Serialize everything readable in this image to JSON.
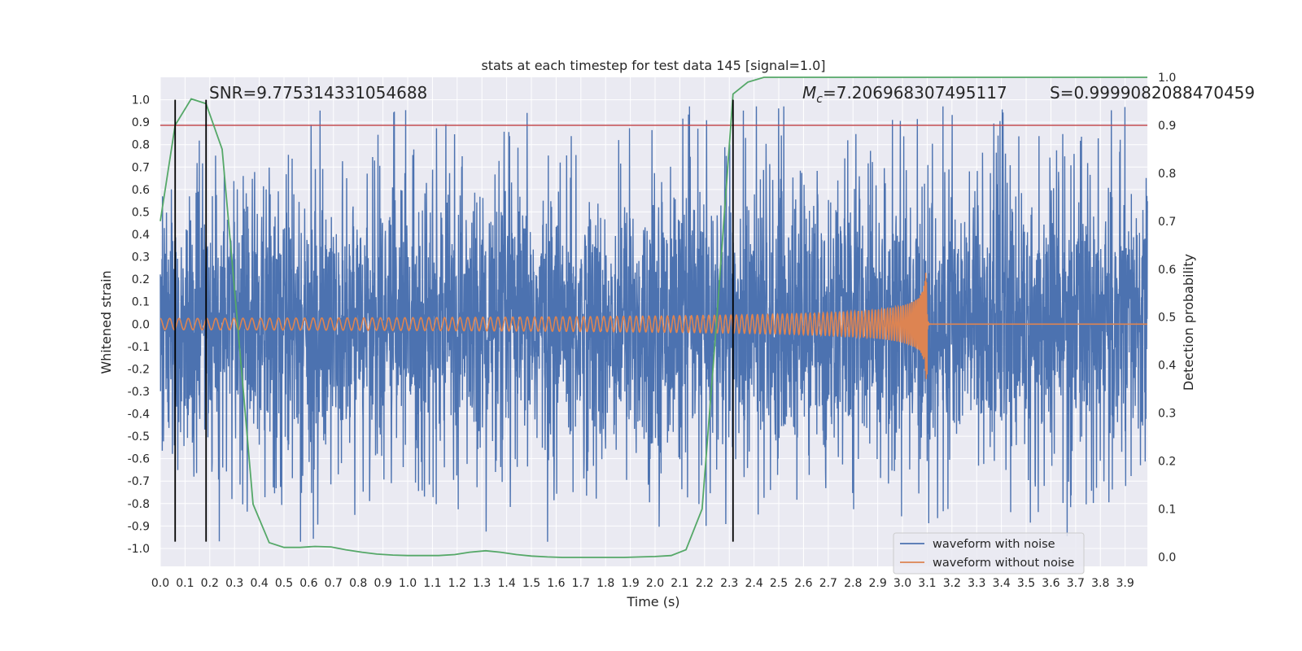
{
  "chart_data": {
    "type": "line",
    "title": "stats at each timestep for test data 145 [signal=1.0]",
    "xlabel": "Time (s)",
    "ylabel_left": "Whitened strain",
    "ylabel_right": "Detection probability",
    "xlim": [
      0.0,
      3.99
    ],
    "ylim_left": [
      -1.08,
      1.1
    ],
    "ylim_right": [
      -0.0196,
      1.0
    ],
    "x_ticks": [
      "0.0",
      "0.1",
      "0.2",
      "0.3",
      "0.4",
      "0.5",
      "0.6",
      "0.7",
      "0.8",
      "0.9",
      "1.0",
      "1.1",
      "1.2",
      "1.3",
      "1.4",
      "1.5",
      "1.6",
      "1.7",
      "1.8",
      "1.9",
      "2.0",
      "2.1",
      "2.2",
      "2.3",
      "2.4",
      "2.5",
      "2.6",
      "2.7",
      "2.8",
      "2.9",
      "3.0",
      "3.1",
      "3.2",
      "3.3",
      "3.4",
      "3.5",
      "3.6",
      "3.7",
      "3.8",
      "3.9"
    ],
    "y_ticks_left": [
      "1.0",
      "0.9",
      "0.8",
      "0.7",
      "0.6",
      "0.5",
      "0.4",
      "0.3",
      "0.2",
      "0.1",
      "0.0",
      "-0.1",
      "-0.2",
      "-0.3",
      "-0.4",
      "-0.5",
      "-0.6",
      "-0.7",
      "-0.8",
      "-0.9",
      "-1.0"
    ],
    "y_ticks_right": [
      "1.0",
      "0.9",
      "0.8",
      "0.7",
      "0.6",
      "0.5",
      "0.4",
      "0.3",
      "0.2",
      "0.1",
      "0.0"
    ],
    "grid": true,
    "legend_position": "bottom-right",
    "annotations": {
      "snr": "SNR=9.775314331054688",
      "mc_symbol": "M",
      "mc_sub": "c",
      "mc_value": "=7.206968307495117",
      "s": "S=0.9999082088470459"
    },
    "threshold": {
      "value_right_axis": 0.9,
      "color": "#c44e52"
    },
    "vertical_markers_x": [
      0.06,
      0.185,
      2.315
    ],
    "series": [
      {
        "name": "waveform with noise",
        "color": "#4c72b0",
        "kind": "noise",
        "amplitude_envelope": [
          -0.97,
          0.97
        ]
      },
      {
        "name": "waveform without noise",
        "color": "#dd8452",
        "kind": "chirp",
        "merger_time": 3.1,
        "amplitude_start": 0.025,
        "amplitude_peak": 0.3
      },
      {
        "name": "",
        "color": "#55a868",
        "axis": "right",
        "kind": "probability",
        "x": [
          0.0,
          0.06,
          0.125,
          0.185,
          0.25,
          0.31,
          0.375,
          0.44,
          0.5,
          0.565,
          0.625,
          0.69,
          0.75,
          0.815,
          0.875,
          0.94,
          1.0,
          1.065,
          1.125,
          1.19,
          1.25,
          1.315,
          1.375,
          1.44,
          1.5,
          1.565,
          1.625,
          1.69,
          1.75,
          1.815,
          1.875,
          1.94,
          2.0,
          2.065,
          2.125,
          2.19,
          2.25,
          2.315,
          2.375,
          2.44,
          3.99
        ],
        "y": [
          0.7,
          0.9,
          0.955,
          0.945,
          0.85,
          0.5,
          0.11,
          0.03,
          0.02,
          0.02,
          0.022,
          0.021,
          0.015,
          0.01,
          0.006,
          0.004,
          0.003,
          0.003,
          0.003,
          0.005,
          0.01,
          0.013,
          0.01,
          0.005,
          0.002,
          0.0,
          -0.001,
          -0.001,
          -0.001,
          -0.001,
          -0.001,
          0.0,
          0.001,
          0.003,
          0.015,
          0.1,
          0.5,
          0.965,
          0.99,
          1.0,
          1.0
        ]
      }
    ]
  }
}
